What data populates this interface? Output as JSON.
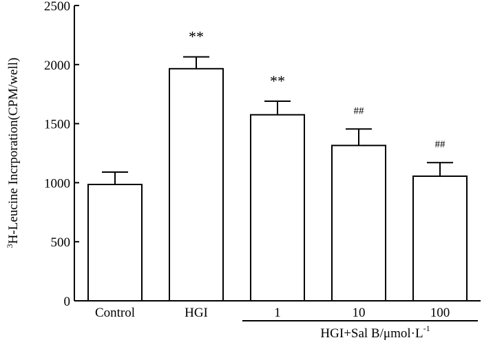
{
  "chart_data": {
    "type": "bar",
    "categories": [
      "Control",
      "HGI",
      "1",
      "10",
      "100"
    ],
    "values": [
      985,
      1965,
      1575,
      1315,
      1055
    ],
    "errors": [
      105,
      100,
      115,
      140,
      115
    ],
    "significance": [
      "",
      "**",
      "**",
      "##",
      "##"
    ],
    "ylabel": {
      "superscript": "3",
      "text": "H-Leucine Incrporation(CPM/well)"
    },
    "xlabel_group": {
      "text": "HGI+Sal B/μmol·L",
      "superscript": "-1",
      "spans_categories": [
        "1",
        "10",
        "100"
      ]
    },
    "ylim": [
      0,
      2500
    ],
    "yticks": [
      "0",
      "500",
      "1000",
      "1500",
      "2000",
      "2500"
    ],
    "grid": false,
    "bar_fill": "#ffffff",
    "bar_stroke": "#000000"
  }
}
